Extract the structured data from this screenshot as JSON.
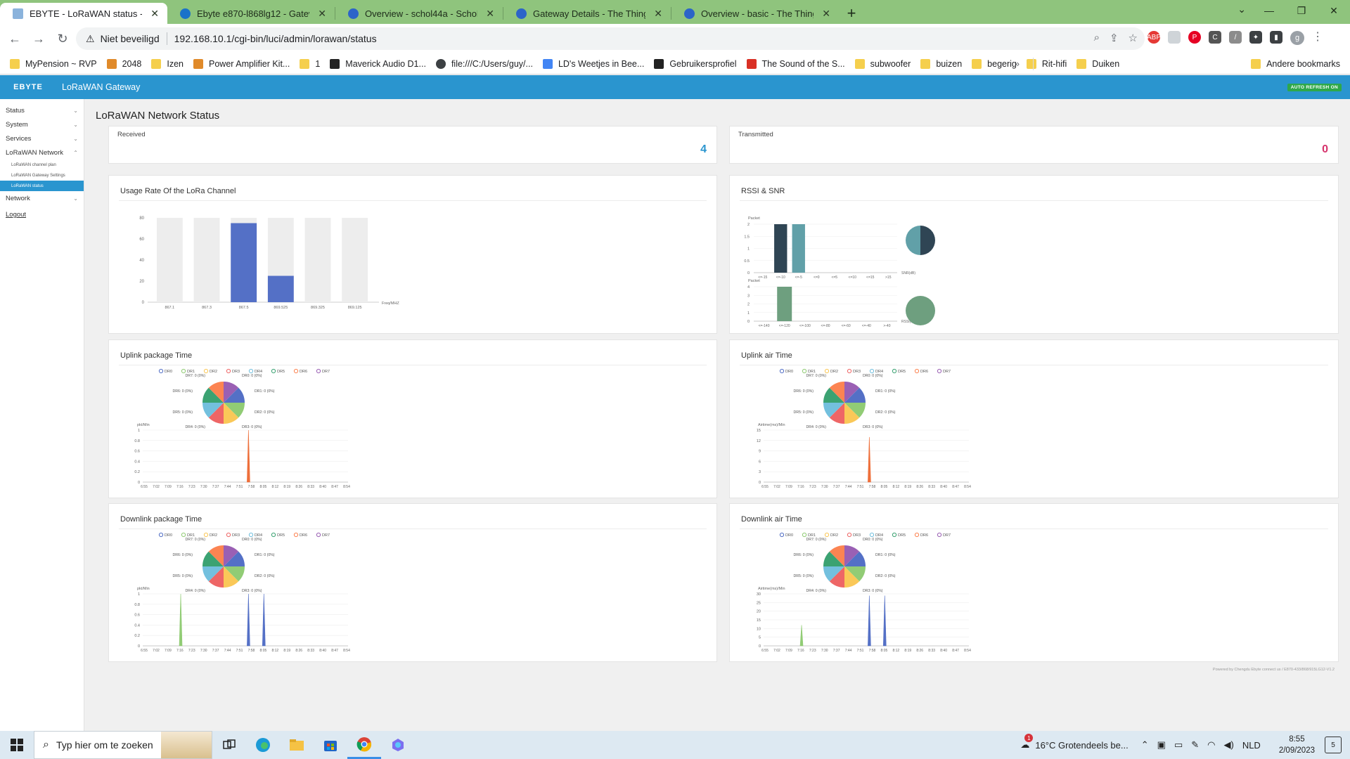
{
  "browser": {
    "tabs": [
      {
        "label": "EBYTE - LoRaWAN status - LuCI",
        "active": true,
        "icon": "ebyte-favicon"
      },
      {
        "label": "Ebyte e870-l868lg12 - Gateways",
        "active": false,
        "icon": "cloud-favicon"
      },
      {
        "label": "Overview - schol44a - Schollebee",
        "active": false,
        "icon": "ttn-favicon"
      },
      {
        "label": "Gateway Details - The Things Sta",
        "active": false,
        "icon": "ttn-favicon"
      },
      {
        "label": "Overview - basic - The Things Ne",
        "active": false,
        "icon": "ttn-favicon"
      }
    ],
    "security_label": "Niet beveiligd",
    "url": "192.168.10.1/cgi-bin/luci/admin/lorawan/status",
    "bookmarks": [
      {
        "label": "MyPension ~ RVP",
        "icon": "folder"
      },
      {
        "label": "2048",
        "icon": "2048"
      },
      {
        "label": "Izen",
        "icon": "folder"
      },
      {
        "label": "Power Amplifier Kit...",
        "icon": "orange"
      },
      {
        "label": "1",
        "icon": "folder"
      },
      {
        "label": "Maverick Audio D1...",
        "icon": "dark"
      },
      {
        "label": "file:///C:/Users/guy/...",
        "icon": "globe"
      },
      {
        "label": "LD's Weetjes in Bee...",
        "icon": "blue"
      },
      {
        "label": "Gebruikersprofiel",
        "icon": "dark"
      },
      {
        "label": "The Sound of the S...",
        "icon": "red"
      },
      {
        "label": "subwoofer",
        "icon": "folder"
      },
      {
        "label": "buizen",
        "icon": "folder"
      },
      {
        "label": "begerig",
        "icon": "folder"
      },
      {
        "label": "Rit-hifi",
        "icon": "folder"
      },
      {
        "label": "Duiken",
        "icon": "folder"
      }
    ],
    "other_bookmarks": "Andere bookmarks"
  },
  "app": {
    "brand": "EBYTE",
    "header_title": "LoRaWAN Gateway",
    "auto_refresh": "AUTO REFRESH ON",
    "page_title": "LoRaWAN Network Status",
    "footer": "Powered by Chengdu Ebyte connect us / E870-433/868/915LG12-V1.2",
    "colors": {
      "brand_blue": "#2a95cf",
      "received": "#2a95cf",
      "transmitted": "#d6336c",
      "bar": "#5470c6",
      "dark": "#2f4554",
      "teal": "#61a0a8",
      "green": "#6e9f7f"
    }
  },
  "sidebar": {
    "items": [
      {
        "label": "Status",
        "icon": "chevron-down-icon"
      },
      {
        "label": "System",
        "icon": "chevron-down-icon"
      },
      {
        "label": "Services",
        "icon": "chevron-down-icon"
      },
      {
        "label": "LoRaWAN Network",
        "icon": "chevron-up-icon"
      }
    ],
    "sub_items": [
      {
        "label": "LoRaWAN channel plan",
        "active": false
      },
      {
        "label": "LoRaWAN Gateway Settings",
        "active": false
      },
      {
        "label": "LoRaWAN status",
        "active": true
      }
    ],
    "network": "Network",
    "logout": "Logout"
  },
  "stats": {
    "received_label": "Received",
    "received_value": "4",
    "transmitted_label": "Transmitted",
    "transmitted_value": "0"
  },
  "cards": {
    "usage_title": "Usage Rate Of the LoRa Channel",
    "rssi_title": "RSSI & SNR",
    "uplink_pkg_title": "Uplink package Time",
    "uplink_air_title": "Uplink air Time",
    "downlink_pkg_title": "Downlink package Time",
    "downlink_air_title": "Downlink air Time"
  },
  "chart_data": [
    {
      "id": "usage",
      "type": "bar",
      "title": "Usage Rate Of the LoRa Channel",
      "categories": [
        "867.1",
        "867.3",
        "867.5",
        "869.525",
        "869.325",
        "869.125"
      ],
      "values": [
        0,
        0,
        75,
        25,
        0,
        0
      ],
      "ylim": [
        0,
        80
      ],
      "yticks": [
        0,
        20,
        40,
        60,
        80
      ],
      "xlabel": "Freq/MHZ"
    },
    {
      "id": "snr",
      "type": "bar",
      "categories": [
        "<=-15",
        "<=-10",
        "<=-5",
        "<=0",
        "<=5",
        "<=10",
        "<=15",
        ">15"
      ],
      "series": [
        {
          "values": [
            0,
            2,
            0,
            0,
            0,
            0,
            0,
            0
          ],
          "color": "#2f4554"
        },
        {
          "values": [
            0,
            0,
            2,
            0,
            0,
            0,
            0,
            0
          ],
          "color": "#61a0a8"
        }
      ],
      "ylim": [
        0,
        2
      ],
      "yticks": [
        "0",
        "0.5",
        "1",
        "1.5",
        "2"
      ],
      "ylabel": "Packet",
      "xlabel": "SNR(dB)",
      "pie": [
        {
          "value": 1,
          "color": "#2f4554"
        },
        {
          "value": 1,
          "color": "#61a0a8"
        }
      ]
    },
    {
      "id": "rssi",
      "type": "bar",
      "categories": [
        "<=-140",
        "<=-120",
        "<=-100",
        "<=-80",
        "<=-60",
        "<=-40",
        ">-40"
      ],
      "values": [
        0,
        4,
        0,
        0,
        0,
        0,
        0
      ],
      "ylim": [
        0,
        4
      ],
      "yticks": [
        "0",
        "1",
        "2",
        "3",
        "4"
      ],
      "ylabel": "Packet",
      "xlabel": "RSSI(dBm)",
      "color": "#6e9f7f",
      "pie": [
        {
          "value": 1,
          "color": "#6e9f7f"
        }
      ]
    },
    {
      "id": "uplink_pkg",
      "type": "line",
      "legend": [
        "DR0",
        "DR1",
        "DR2",
        "DR3",
        "DR4",
        "DR5",
        "DR6",
        "DR7"
      ],
      "pie_labels": [
        "DR7: 0 (0%)",
        "DR0: 0 (0%)",
        "DR1: 0 (0%)",
        "DR2: 0 (0%)",
        "DR3: 0 (0%)",
        "DR4: 0 (0%)",
        "DR5: 0 (0%)",
        "DR6: 0 (0%)"
      ],
      "ylabel": "pkt/Min",
      "yticks": [
        "0",
        "0.2",
        "0.4",
        "0.6",
        "0.8",
        "1"
      ],
      "ylim": [
        0,
        1
      ],
      "x": [
        "6:55",
        "7:02",
        "7:09",
        "7:16",
        "7:23",
        "7:30",
        "7:37",
        "7:44",
        "7:51",
        "7:58",
        "8:05",
        "8:12",
        "8:19",
        "8:26",
        "8:33",
        "8:40",
        "8:47",
        "8:54"
      ],
      "peaks": [
        {
          "x": 0.515,
          "y": 1,
          "color": "#ee6f3a"
        }
      ]
    },
    {
      "id": "uplink_air",
      "type": "line",
      "legend": [
        "DR0",
        "DR1",
        "DR2",
        "DR3",
        "DR4",
        "DR5",
        "DR6",
        "DR7"
      ],
      "pie_labels": [
        "DR7: 0 (0%)",
        "DR0: 0 (0%)",
        "DR1: 0 (0%)",
        "DR2: 0 (0%)",
        "DR3: 0 (0%)",
        "DR4: 0 (0%)",
        "DR5: 0 (0%)",
        "DR6: 0 (0%)"
      ],
      "ylabel": "Airtime(ms)/Min",
      "yticks": [
        "0",
        "3",
        "6",
        "9",
        "12",
        "15"
      ],
      "ylim": [
        0,
        15
      ],
      "x": [
        "6:55",
        "7:02",
        "7:09",
        "7:16",
        "7:23",
        "7:30",
        "7:37",
        "7:44",
        "7:51",
        "7:58",
        "8:05",
        "8:12",
        "8:19",
        "8:26",
        "8:33",
        "8:40",
        "8:47",
        "8:54"
      ],
      "peaks": [
        {
          "x": 0.515,
          "y": 13,
          "color": "#ee6f3a"
        }
      ]
    },
    {
      "id": "downlink_pkg",
      "type": "line",
      "legend": [
        "DR0",
        "DR1",
        "DR2",
        "DR3",
        "DR4",
        "DR5",
        "DR6",
        "DR7"
      ],
      "pie_labels": [
        "DR7: 0 (0%)",
        "DR0: 0 (0%)",
        "DR1: 0 (0%)",
        "DR2: 0 (0%)",
        "DR3: 0 (0%)",
        "DR4: 0 (0%)",
        "DR5: 0 (0%)",
        "DR6: 0 (0%)"
      ],
      "ylabel": "pkt/Min",
      "yticks": [
        "0",
        "0.2",
        "0.4",
        "0.6",
        "0.8",
        "1"
      ],
      "ylim": [
        0,
        1
      ],
      "x": [
        "6:55",
        "7:02",
        "7:09",
        "7:16",
        "7:23",
        "7:30",
        "7:37",
        "7:44",
        "7:51",
        "7:58",
        "8:05",
        "8:12",
        "8:19",
        "8:26",
        "8:33",
        "8:40",
        "8:47",
        "8:54"
      ],
      "peaks": [
        {
          "x": 0.185,
          "y": 1,
          "color": "#91cc75"
        },
        {
          "x": 0.515,
          "y": 1,
          "color": "#5470c6"
        },
        {
          "x": 0.59,
          "y": 1,
          "color": "#5470c6"
        }
      ]
    },
    {
      "id": "downlink_air",
      "type": "line",
      "legend": [
        "DR0",
        "DR1",
        "DR2",
        "DR3",
        "DR4",
        "DR5",
        "DR6",
        "DR7"
      ],
      "pie_labels": [
        "DR7: 0 (0%)",
        "DR0: 0 (0%)",
        "DR1: 0 (0%)",
        "DR2: 0 (0%)",
        "DR3: 0 (0%)",
        "DR4: 0 (0%)",
        "DR5: 0 (0%)",
        "DR6: 0 (0%)"
      ],
      "ylabel": "Airtime(ms)/Min",
      "yticks": [
        "0",
        "5",
        "10",
        "15",
        "20",
        "25",
        "30"
      ],
      "ylim": [
        0,
        30
      ],
      "x": [
        "6:55",
        "7:02",
        "7:09",
        "7:16",
        "7:23",
        "7:30",
        "7:37",
        "7:44",
        "7:51",
        "7:58",
        "8:05",
        "8:12",
        "8:19",
        "8:26",
        "8:33",
        "8:40",
        "8:47",
        "8:54"
      ],
      "peaks": [
        {
          "x": 0.185,
          "y": 12,
          "color": "#91cc75"
        },
        {
          "x": 0.515,
          "y": 29,
          "color": "#5470c6"
        },
        {
          "x": 0.59,
          "y": 29,
          "color": "#5470c6"
        }
      ]
    }
  ],
  "dr_colors": [
    "#5470c6",
    "#91cc75",
    "#fac858",
    "#ee6666",
    "#73c0de",
    "#3ba272",
    "#fc8452",
    "#9a60b4"
  ],
  "taskbar": {
    "search_placeholder": "Typ hier om te zoeken",
    "weather": "16°C  Grotendeels be...",
    "language": "NLD",
    "time": "8:55",
    "date": "2/09/2023",
    "notifications": "5",
    "weather_badge": "1"
  }
}
